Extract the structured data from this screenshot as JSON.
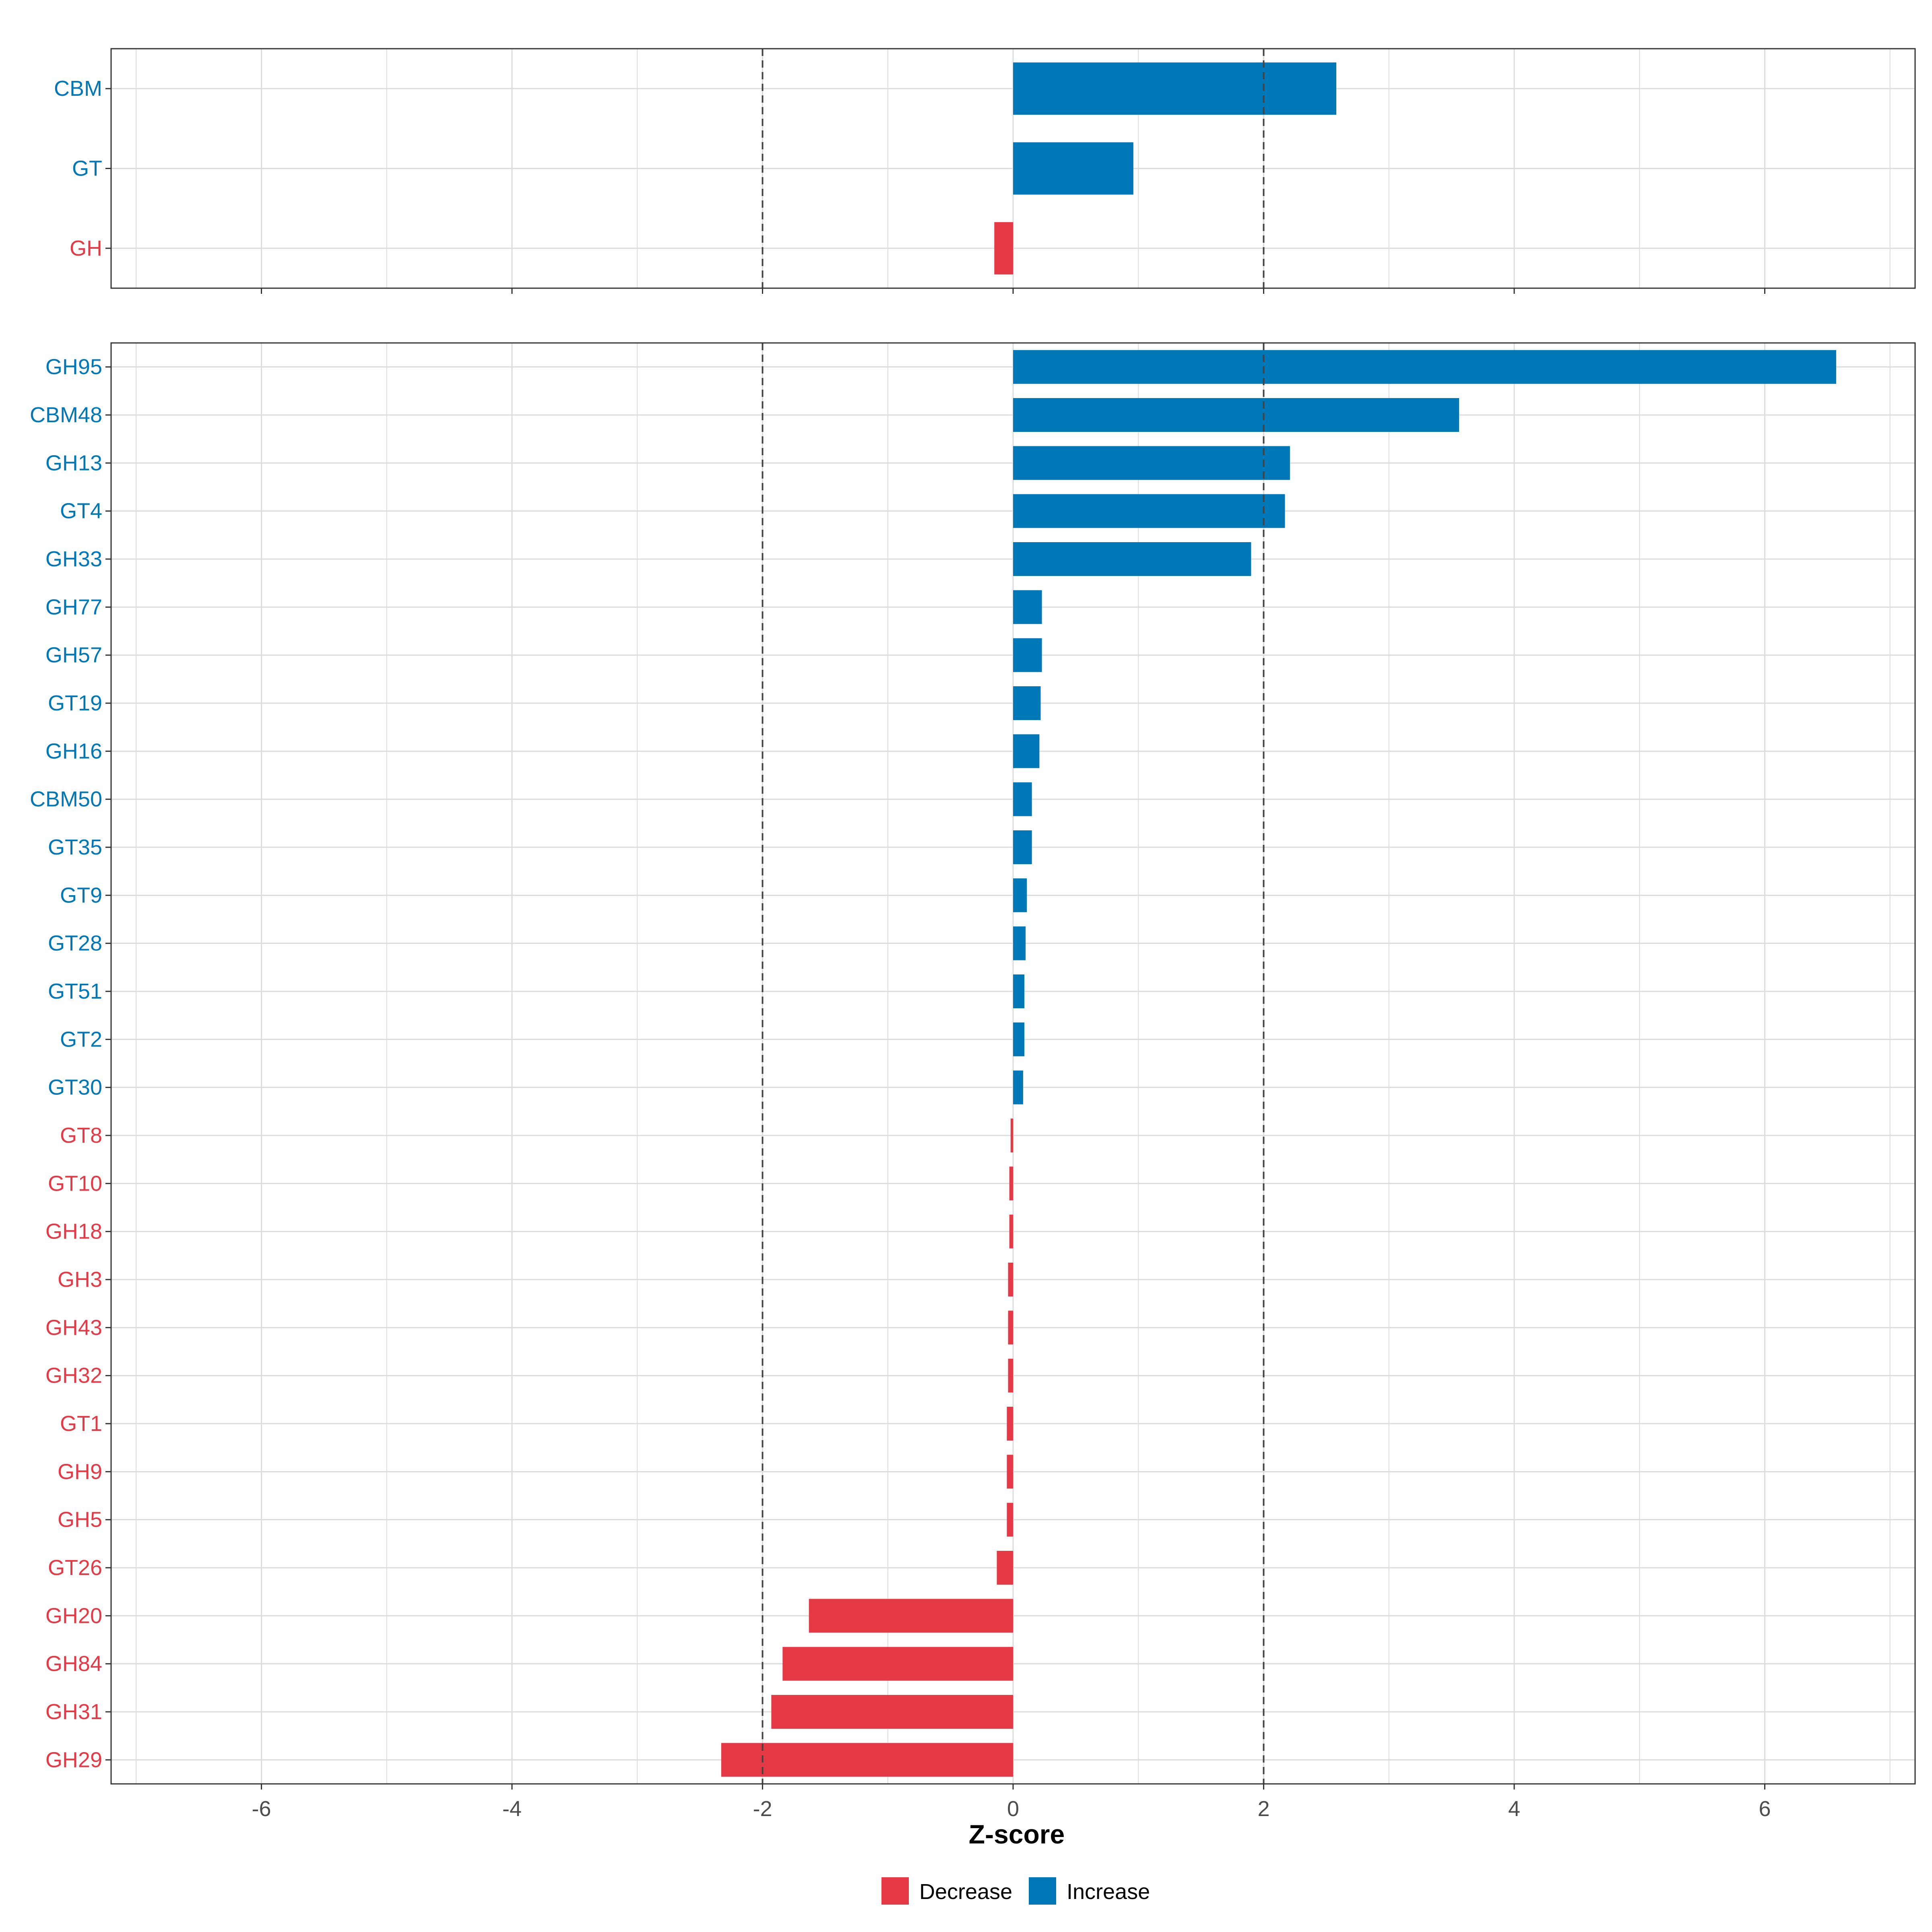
{
  "colors": {
    "decrease": "#E63946",
    "increase": "#0077B6",
    "grid": "#DCDCDC",
    "panel_border": "#333333",
    "threshold_line": "#444444"
  },
  "chart_data": [
    {
      "type": "bar",
      "orientation": "horizontal",
      "panel": "class-level",
      "categories": [
        "CBM",
        "GT",
        "GH"
      ],
      "values": [
        2.58,
        0.96,
        -0.15
      ],
      "direction": [
        "Increase",
        "Increase",
        "Decrease"
      ],
      "xlim": [
        -7.2,
        7.2
      ],
      "x_ticks": [
        -6,
        -4,
        -2,
        0,
        2,
        4,
        6
      ],
      "x_tick_labels": [
        "-6",
        "-4",
        "-2",
        "0",
        "2",
        "4",
        "6"
      ],
      "thresholds": [
        -2,
        2
      ],
      "grid": true
    },
    {
      "type": "bar",
      "orientation": "horizontal",
      "panel": "family-level",
      "categories": [
        "GH95",
        "CBM48",
        "GH13",
        "GT4",
        "GH33",
        "GH77",
        "GH57",
        "GT19",
        "GH16",
        "CBM50",
        "GT35",
        "GT9",
        "GT28",
        "GT51",
        "GT2",
        "GT30",
        "GT8",
        "GT10",
        "GH18",
        "GH3",
        "GH43",
        "GH32",
        "GT1",
        "GH9",
        "GH5",
        "GT26",
        "GH20",
        "GH84",
        "GH31",
        "GH29"
      ],
      "values": [
        6.57,
        3.56,
        2.21,
        2.17,
        1.9,
        0.23,
        0.23,
        0.22,
        0.21,
        0.15,
        0.15,
        0.11,
        0.1,
        0.09,
        0.09,
        0.08,
        -0.02,
        -0.03,
        -0.03,
        -0.04,
        -0.04,
        -0.04,
        -0.05,
        -0.05,
        -0.05,
        -0.13,
        -1.63,
        -1.84,
        -1.93,
        -2.33
      ],
      "direction": [
        "Increase",
        "Increase",
        "Increase",
        "Increase",
        "Increase",
        "Increase",
        "Increase",
        "Increase",
        "Increase",
        "Increase",
        "Increase",
        "Increase",
        "Increase",
        "Increase",
        "Increase",
        "Increase",
        "Decrease",
        "Decrease",
        "Decrease",
        "Decrease",
        "Decrease",
        "Decrease",
        "Decrease",
        "Decrease",
        "Decrease",
        "Decrease",
        "Decrease",
        "Decrease",
        "Decrease",
        "Decrease"
      ],
      "xlim": [
        -7.2,
        7.2
      ],
      "x_ticks": [
        -6,
        -4,
        -2,
        0,
        2,
        4,
        6
      ],
      "x_tick_labels": [
        "-6",
        "-4",
        "-2",
        "0",
        "2",
        "4",
        "6"
      ],
      "xlabel": "Z-score",
      "thresholds": [
        -2,
        2
      ],
      "grid": true
    }
  ],
  "legend": {
    "placement": "bottom",
    "items": [
      {
        "label": "Decrease",
        "color_key": "decrease"
      },
      {
        "label": "Increase",
        "color_key": "increase"
      }
    ]
  }
}
